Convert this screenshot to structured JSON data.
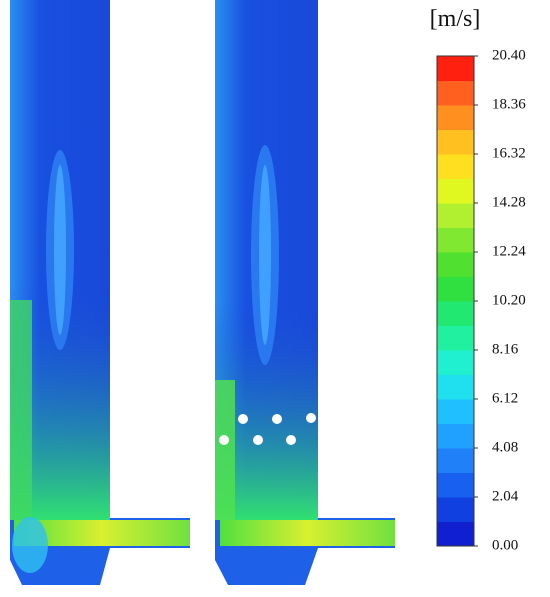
{
  "colorbar": {
    "unit": "[m/s]",
    "ticks": [
      {
        "value": 0,
        "label": "0.00"
      },
      {
        "value": 2.04,
        "label": "2.04"
      },
      {
        "value": 4.08,
        "label": "4.08"
      },
      {
        "value": 6.12,
        "label": "6.12"
      },
      {
        "value": 8.16,
        "label": "8.16"
      },
      {
        "value": 10.2,
        "label": "10.20"
      },
      {
        "value": 12.24,
        "label": "12.24"
      },
      {
        "value": 14.28,
        "label": "14.28"
      },
      {
        "value": 16.32,
        "label": "16.32"
      },
      {
        "value": 18.36,
        "label": "18.36"
      },
      {
        "value": 20.4,
        "label": "20.40"
      }
    ],
    "colors": [
      "#1020d0",
      "#1040e0",
      "#1860f0",
      "#2080f8",
      "#20a0ff",
      "#20c0ff",
      "#20e0f0",
      "#20f0d0",
      "#20f0a0",
      "#20e870",
      "#30e040",
      "#50e030",
      "#80e830",
      "#b0f030",
      "#e0f820",
      "#ffe020",
      "#ffc020",
      "#ff9020",
      "#ff6020",
      "#ff2010"
    ]
  }
}
